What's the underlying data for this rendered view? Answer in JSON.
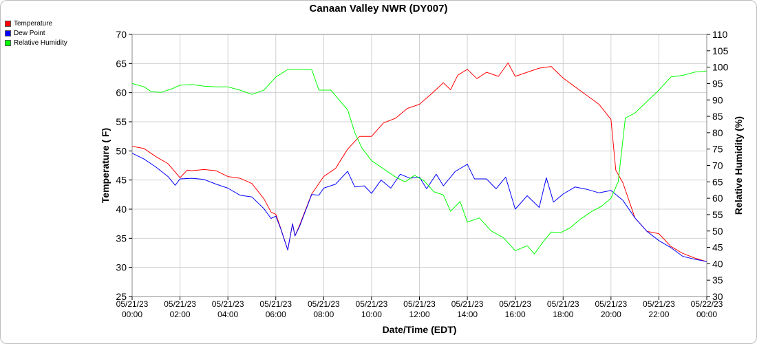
{
  "chart_data": {
    "type": "line",
    "title": "Canaan Valley NWR (DY007)",
    "xlabel": "Date/Time (EDT)",
    "ylabel_left": "Temperature ( F)",
    "ylabel_right": "Relative Humidity (%)",
    "ylim_left": [
      25,
      70
    ],
    "ylim_right": [
      30,
      110
    ],
    "xlim_hours": [
      0,
      24
    ],
    "grid": true,
    "legend_position": "top-left",
    "x_tick_labels": [
      {
        "date": "05/21/23",
        "time": "00:00"
      },
      {
        "date": "05/21/23",
        "time": "02:00"
      },
      {
        "date": "05/21/23",
        "time": "04:00"
      },
      {
        "date": "05/21/23",
        "time": "06:00"
      },
      {
        "date": "05/21/23",
        "time": "08:00"
      },
      {
        "date": "05/21/23",
        "time": "10:00"
      },
      {
        "date": "05/21/23",
        "time": "12:00"
      },
      {
        "date": "05/21/23",
        "time": "14:00"
      },
      {
        "date": "05/21/23",
        "time": "16:00"
      },
      {
        "date": "05/21/23",
        "time": "18:00"
      },
      {
        "date": "05/21/23",
        "time": "20:00"
      },
      {
        "date": "05/21/23",
        "time": "22:00"
      },
      {
        "date": "05/22/23",
        "time": "00:00"
      }
    ],
    "y_left_ticks": [
      25,
      30,
      35,
      40,
      45,
      50,
      55,
      60,
      65,
      70
    ],
    "y_right_ticks": [
      30,
      35,
      40,
      45,
      50,
      55,
      60,
      65,
      70,
      75,
      80,
      85,
      90,
      95,
      100,
      105,
      110
    ],
    "series": [
      {
        "name": "Temperature",
        "color": "#ff0000",
        "axis": "left",
        "points": [
          [
            0,
            50.8
          ],
          [
            0.5,
            50.4
          ],
          [
            1,
            49
          ],
          [
            1.5,
            47.8
          ],
          [
            2,
            45.4
          ],
          [
            2.3,
            46.7
          ],
          [
            2.5,
            46.6
          ],
          [
            3,
            46.8
          ],
          [
            3.5,
            46.6
          ],
          [
            4,
            45.6
          ],
          [
            4.5,
            45.3
          ],
          [
            5,
            44.4
          ],
          [
            5.5,
            41.8
          ],
          [
            5.8,
            39.5
          ],
          [
            6,
            39.1
          ],
          [
            6.2,
            36.8
          ],
          [
            6.5,
            33
          ],
          [
            6.7,
            37.5
          ],
          [
            6.8,
            35.4
          ],
          [
            7,
            37.3
          ],
          [
            7.5,
            42.6
          ],
          [
            8,
            45.6
          ],
          [
            8.5,
            47
          ],
          [
            9,
            50.3
          ],
          [
            9.5,
            52.5
          ],
          [
            10,
            52.5
          ],
          [
            10.5,
            54.8
          ],
          [
            11,
            55.6
          ],
          [
            11.5,
            57.3
          ],
          [
            12,
            58
          ],
          [
            12.5,
            59.8
          ],
          [
            13,
            61.7
          ],
          [
            13.3,
            60.5
          ],
          [
            13.6,
            63
          ],
          [
            14,
            64
          ],
          [
            14.4,
            62.4
          ],
          [
            14.8,
            63.5
          ],
          [
            15.3,
            62.8
          ],
          [
            15.7,
            65.1
          ],
          [
            16,
            62.8
          ],
          [
            16.5,
            63.5
          ],
          [
            17,
            64.2
          ],
          [
            17.5,
            64.5
          ],
          [
            18,
            62.5
          ],
          [
            18.5,
            61
          ],
          [
            19,
            59.5
          ],
          [
            19.5,
            58
          ],
          [
            20,
            55.4
          ],
          [
            20.2,
            46.7
          ],
          [
            20.5,
            44.5
          ],
          [
            21,
            38.5
          ],
          [
            21.5,
            36.2
          ],
          [
            22,
            35.8
          ],
          [
            22.5,
            33.6
          ],
          [
            23,
            32.4
          ],
          [
            23.5,
            31.6
          ],
          [
            24,
            31
          ]
        ]
      },
      {
        "name": "Dew Point",
        "color": "#0000ff",
        "axis": "left",
        "points": [
          [
            0,
            49.6
          ],
          [
            0.5,
            48.6
          ],
          [
            1,
            47.2
          ],
          [
            1.5,
            45.6
          ],
          [
            1.8,
            44.1
          ],
          [
            2,
            45.2
          ],
          [
            2.5,
            45.3
          ],
          [
            3,
            45.1
          ],
          [
            3.5,
            44.3
          ],
          [
            4,
            43.6
          ],
          [
            4.5,
            42.4
          ],
          [
            5,
            42.1
          ],
          [
            5.5,
            40.1
          ],
          [
            5.8,
            38.4
          ],
          [
            6,
            38.8
          ],
          [
            6.2,
            36.7
          ],
          [
            6.5,
            33
          ],
          [
            6.7,
            37.5
          ],
          [
            6.8,
            35.4
          ],
          [
            7,
            37.1
          ],
          [
            7.5,
            42.5
          ],
          [
            7.8,
            42.4
          ],
          [
            8,
            43.6
          ],
          [
            8.5,
            44.3
          ],
          [
            9,
            46.5
          ],
          [
            9.3,
            43.8
          ],
          [
            9.7,
            44
          ],
          [
            10,
            42.7
          ],
          [
            10.4,
            45
          ],
          [
            10.8,
            43.6
          ],
          [
            11.2,
            46
          ],
          [
            11.6,
            45.3
          ],
          [
            12,
            45.5
          ],
          [
            12.3,
            43.5
          ],
          [
            12.7,
            46
          ],
          [
            13,
            44
          ],
          [
            13.5,
            46.5
          ],
          [
            14,
            47.7
          ],
          [
            14.3,
            45.2
          ],
          [
            14.8,
            45.2
          ],
          [
            15.2,
            43.5
          ],
          [
            15.6,
            45.5
          ],
          [
            16,
            40
          ],
          [
            16.5,
            42.3
          ],
          [
            17,
            40.3
          ],
          [
            17.3,
            45.4
          ],
          [
            17.6,
            41.2
          ],
          [
            18,
            42.6
          ],
          [
            18.5,
            43.8
          ],
          [
            19,
            43.4
          ],
          [
            19.5,
            42.8
          ],
          [
            20,
            43.2
          ],
          [
            20.5,
            41.5
          ],
          [
            21,
            38.5
          ],
          [
            21.5,
            36.2
          ],
          [
            22,
            34.6
          ],
          [
            22.5,
            33.4
          ],
          [
            23,
            31.9
          ],
          [
            23.5,
            31.4
          ],
          [
            24,
            31
          ]
        ]
      },
      {
        "name": "Relative Humidity",
        "color": "#00ff00",
        "axis": "right",
        "points": [
          [
            0,
            95
          ],
          [
            0.5,
            94
          ],
          [
            0.8,
            92.5
          ],
          [
            1.2,
            92.3
          ],
          [
            1.7,
            93.5
          ],
          [
            2,
            94.5
          ],
          [
            2.5,
            94.7
          ],
          [
            3,
            94.2
          ],
          [
            3.5,
            94
          ],
          [
            4,
            94
          ],
          [
            4.5,
            93
          ],
          [
            5,
            91.7
          ],
          [
            5.5,
            93
          ],
          [
            6,
            97
          ],
          [
            6.5,
            99.3
          ],
          [
            7.5,
            99.3
          ],
          [
            7.8,
            93
          ],
          [
            8.3,
            93
          ],
          [
            8.7,
            89.5
          ],
          [
            9,
            87
          ],
          [
            9.3,
            80
          ],
          [
            9.6,
            75.3
          ],
          [
            10,
            71.5
          ],
          [
            10.5,
            69
          ],
          [
            11,
            66.5
          ],
          [
            11.4,
            65
          ],
          [
            11.8,
            67
          ],
          [
            12.2,
            65.3
          ],
          [
            12.6,
            62
          ],
          [
            13,
            61
          ],
          [
            13.3,
            56
          ],
          [
            13.7,
            59
          ],
          [
            14,
            52.7
          ],
          [
            14.5,
            54
          ],
          [
            15,
            50
          ],
          [
            15.5,
            48
          ],
          [
            16,
            44
          ],
          [
            16.5,
            45.5
          ],
          [
            16.8,
            43
          ],
          [
            17.2,
            47
          ],
          [
            17.5,
            49.7
          ],
          [
            17.9,
            49.5
          ],
          [
            18.3,
            51
          ],
          [
            18.7,
            53.5
          ],
          [
            19.2,
            56
          ],
          [
            19.6,
            57.5
          ],
          [
            20,
            60
          ],
          [
            20.3,
            65
          ],
          [
            20.6,
            84.5
          ],
          [
            21,
            86
          ],
          [
            21.5,
            89.5
          ],
          [
            22,
            93
          ],
          [
            22.5,
            97
          ],
          [
            23,
            97.5
          ],
          [
            23.5,
            98.5
          ],
          [
            24,
            98.8
          ]
        ]
      }
    ]
  }
}
